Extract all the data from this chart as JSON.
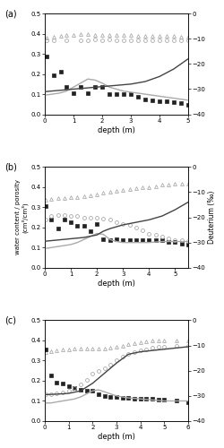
{
  "panels": [
    {
      "label": "(a)",
      "xmax": 5,
      "xticks": [
        0,
        1,
        2,
        3,
        4,
        5
      ],
      "porosity_x": [
        0.05,
        0.3,
        0.55,
        0.75,
        1.0,
        1.25,
        1.5,
        1.75,
        2.0,
        2.25,
        2.5,
        2.75,
        3.0,
        3.25,
        3.5,
        3.75,
        4.0,
        4.25,
        4.5,
        4.75,
        5.0
      ],
      "porosity_y": [
        0.38,
        0.385,
        0.39,
        0.393,
        0.395,
        0.396,
        0.396,
        0.395,
        0.395,
        0.395,
        0.394,
        0.393,
        0.392,
        0.391,
        0.391,
        0.39,
        0.389,
        0.388,
        0.387,
        0.385,
        0.383
      ],
      "water_meas_x": [
        0.05,
        0.3,
        0.55,
        0.75,
        1.0,
        1.25,
        1.5,
        1.75,
        2.0,
        2.25,
        2.5,
        2.75,
        3.0,
        3.25,
        3.5,
        3.75,
        4.0,
        4.25,
        4.5,
        4.75,
        5.0
      ],
      "water_meas_y": [
        0.285,
        0.195,
        0.21,
        0.135,
        0.105,
        0.135,
        0.105,
        0.135,
        0.135,
        0.1,
        0.1,
        0.1,
        0.1,
        0.085,
        0.075,
        0.07,
        0.065,
        0.065,
        0.06,
        0.055,
        0.045
      ],
      "water_model_x": [
        0.0,
        0.25,
        0.5,
        0.75,
        1.0,
        1.25,
        1.5,
        1.75,
        2.0,
        2.25,
        2.5,
        2.75,
        3.0,
        3.5,
        4.0,
        4.5,
        5.0
      ],
      "water_model_y": [
        0.095,
        0.1,
        0.105,
        0.115,
        0.135,
        0.155,
        0.175,
        0.17,
        0.155,
        0.135,
        0.125,
        0.115,
        0.11,
        0.1,
        0.09,
        0.08,
        0.07
      ],
      "deut_meas_x": [
        0.05,
        0.3,
        0.75,
        1.25,
        1.5,
        1.75,
        2.0,
        2.25,
        2.5,
        2.75,
        3.0,
        3.25,
        3.5,
        3.75,
        4.0,
        4.25,
        4.5,
        4.75,
        5.0
      ],
      "deut_meas_y": [
        -10.5,
        -10.5,
        -10.5,
        -10.5,
        -10.5,
        -10.3,
        -10.5,
        -10.3,
        -10.5,
        -10.5,
        -10.5,
        -10.5,
        -10.5,
        -10.5,
        -10.5,
        -10.5,
        -10.5,
        -10.5,
        -10.5
      ],
      "deut_model_x": [
        0.0,
        0.5,
        1.0,
        1.5,
        2.0,
        2.5,
        3.0,
        3.5,
        4.0,
        4.5,
        5.0
      ],
      "deut_model_y": [
        -31.0,
        -30.5,
        -30.0,
        -29.5,
        -29.0,
        -28.5,
        -28.0,
        -27.0,
        -25.0,
        -22.0,
        -18.0
      ]
    },
    {
      "label": "(b)",
      "xmax": 5.5,
      "xticks": [
        0,
        1,
        2,
        3,
        4,
        5
      ],
      "porosity_x": [
        0.05,
        0.25,
        0.5,
        0.75,
        1.0,
        1.25,
        1.5,
        1.75,
        2.0,
        2.25,
        2.5,
        2.75,
        3.0,
        3.25,
        3.5,
        3.75,
        4.0,
        4.25,
        4.5,
        4.75,
        5.0,
        5.25,
        5.5
      ],
      "porosity_y": [
        0.335,
        0.34,
        0.345,
        0.345,
        0.35,
        0.35,
        0.355,
        0.36,
        0.365,
        0.37,
        0.375,
        0.38,
        0.385,
        0.39,
        0.395,
        0.398,
        0.4,
        0.405,
        0.41,
        0.41,
        0.415,
        0.415,
        0.415
      ],
      "water_meas_x": [
        0.05,
        0.25,
        0.5,
        0.75,
        1.0,
        1.25,
        1.5,
        1.75,
        2.0,
        2.25,
        2.5,
        2.75,
        3.0,
        3.25,
        3.5,
        3.75,
        4.0,
        4.25,
        4.5,
        4.75,
        5.0,
        5.25,
        5.5
      ],
      "water_meas_y": [
        0.305,
        0.24,
        0.195,
        0.24,
        0.225,
        0.21,
        0.21,
        0.18,
        0.215,
        0.14,
        0.135,
        0.14,
        0.135,
        0.135,
        0.135,
        0.135,
        0.135,
        0.135,
        0.135,
        0.13,
        0.13,
        0.12,
        0.115
      ],
      "water_model_x": [
        0.0,
        0.25,
        0.5,
        0.75,
        1.0,
        1.25,
        1.5,
        1.75,
        2.0,
        2.25,
        2.5,
        2.75,
        3.0,
        3.5,
        4.0,
        4.5,
        5.0,
        5.5
      ],
      "water_model_y": [
        0.095,
        0.1,
        0.105,
        0.11,
        0.115,
        0.125,
        0.14,
        0.155,
        0.17,
        0.165,
        0.14,
        0.13,
        0.125,
        0.125,
        0.125,
        0.13,
        0.13,
        0.13
      ],
      "deut_meas_x": [
        0.05,
        0.25,
        0.5,
        0.75,
        1.0,
        1.25,
        1.5,
        1.75,
        2.0,
        2.25,
        2.5,
        2.75,
        3.0,
        3.25,
        3.5,
        3.75,
        4.0,
        4.25,
        4.5,
        4.75,
        5.0,
        5.25,
        5.5
      ],
      "deut_meas_y": [
        -21.0,
        -19.5,
        -19.0,
        -19.0,
        -19.5,
        -19.5,
        -20.0,
        -20.0,
        -20.0,
        -20.5,
        -21.0,
        -22.0,
        -22.5,
        -23.0,
        -24.0,
        -25.0,
        -26.5,
        -27.0,
        -27.5,
        -28.5,
        -29.0,
        -29.0,
        -29.5
      ],
      "deut_model_x": [
        0.0,
        0.5,
        1.0,
        1.5,
        2.0,
        2.25,
        2.5,
        3.0,
        3.5,
        4.0,
        4.5,
        5.0,
        5.5
      ],
      "deut_model_y": [
        -29.5,
        -29.0,
        -28.5,
        -28.0,
        -27.0,
        -25.5,
        -24.5,
        -23.0,
        -22.0,
        -21.0,
        -19.5,
        -17.0,
        -14.0
      ]
    },
    {
      "label": "(c)",
      "xmax": 6,
      "xticks": [
        0,
        1,
        2,
        3,
        4,
        5,
        6
      ],
      "porosity_x": [
        0.05,
        0.25,
        0.5,
        0.75,
        1.0,
        1.25,
        1.5,
        1.75,
        2.0,
        2.25,
        2.5,
        2.75,
        3.0,
        3.25,
        3.5,
        3.75,
        4.0,
        4.25,
        4.5,
        4.75,
        5.0,
        5.5,
        6.0
      ],
      "porosity_y": [
        0.34,
        0.345,
        0.35,
        0.355,
        0.355,
        0.36,
        0.36,
        0.36,
        0.36,
        0.36,
        0.36,
        0.365,
        0.37,
        0.375,
        0.38,
        0.385,
        0.39,
        0.395,
        0.4,
        0.4,
        0.4,
        0.4,
        0.4
      ],
      "water_meas_x": [
        0.05,
        0.25,
        0.5,
        0.75,
        1.0,
        1.25,
        1.5,
        1.75,
        2.0,
        2.25,
        2.5,
        2.75,
        3.0,
        3.25,
        3.5,
        3.75,
        4.0,
        4.25,
        4.5,
        4.75,
        5.0,
        5.5,
        6.0
      ],
      "water_meas_y": [
        0.355,
        0.225,
        0.19,
        0.185,
        0.175,
        0.165,
        0.155,
        0.15,
        0.15,
        0.135,
        0.125,
        0.12,
        0.12,
        0.115,
        0.115,
        0.11,
        0.11,
        0.11,
        0.11,
        0.105,
        0.105,
        0.1,
        0.095
      ],
      "water_model_x": [
        0.0,
        0.25,
        0.5,
        0.75,
        1.0,
        1.25,
        1.5,
        1.75,
        2.0,
        2.25,
        2.5,
        2.75,
        3.0,
        3.5,
        4.0,
        4.5,
        5.0,
        5.5,
        6.0
      ],
      "water_model_y": [
        0.09,
        0.09,
        0.095,
        0.1,
        0.105,
        0.11,
        0.12,
        0.135,
        0.15,
        0.155,
        0.145,
        0.135,
        0.125,
        0.115,
        0.11,
        0.105,
        0.1,
        0.1,
        0.1
      ],
      "deut_meas_x": [
        0.05,
        0.25,
        0.5,
        0.75,
        1.0,
        1.25,
        1.5,
        1.75,
        2.0,
        2.25,
        2.5,
        2.75,
        3.0,
        3.25,
        3.5,
        3.75,
        4.0,
        4.25,
        4.5,
        4.75,
        5.0,
        5.5,
        6.0
      ],
      "deut_meas_y": [
        -29.5,
        -29.5,
        -29.0,
        -28.5,
        -28.0,
        -27.0,
        -25.5,
        -23.5,
        -21.0,
        -20.0,
        -19.0,
        -17.5,
        -16.0,
        -14.5,
        -13.5,
        -12.5,
        -12.0,
        -11.5,
        -11.0,
        -10.5,
        -10.5,
        -10.3,
        -10.0
      ],
      "deut_model_x": [
        0.0,
        0.5,
        1.0,
        1.5,
        2.0,
        2.5,
        3.0,
        3.5,
        4.0,
        4.5,
        5.0,
        5.5,
        6.0
      ],
      "deut_model_y": [
        -29.5,
        -29.3,
        -29.0,
        -28.0,
        -25.0,
        -21.0,
        -17.0,
        -13.5,
        -12.5,
        -12.0,
        -11.5,
        -11.0,
        -10.5
      ]
    }
  ],
  "ylabel_left": "water content / porosity\n(cm³/cm³)",
  "ylabel_right": "Deuterium (‰)",
  "xlabel": "depth (m)",
  "ylim_left": [
    0,
    0.5
  ],
  "ylim_right": [
    -40,
    0
  ],
  "yticks_left": [
    0,
    0.1,
    0.2,
    0.3,
    0.4,
    0.5
  ],
  "yticks_right": [
    0,
    -10,
    -20,
    -30,
    -40
  ],
  "line_color_water_model": "#aaaaaa",
  "line_color_deut_model": "#444444",
  "marker_color_porosity": "#aaaaaa",
  "marker_color_water": "#222222",
  "marker_color_deut_open": "#aaaaaa",
  "bg_color": "#ffffff"
}
